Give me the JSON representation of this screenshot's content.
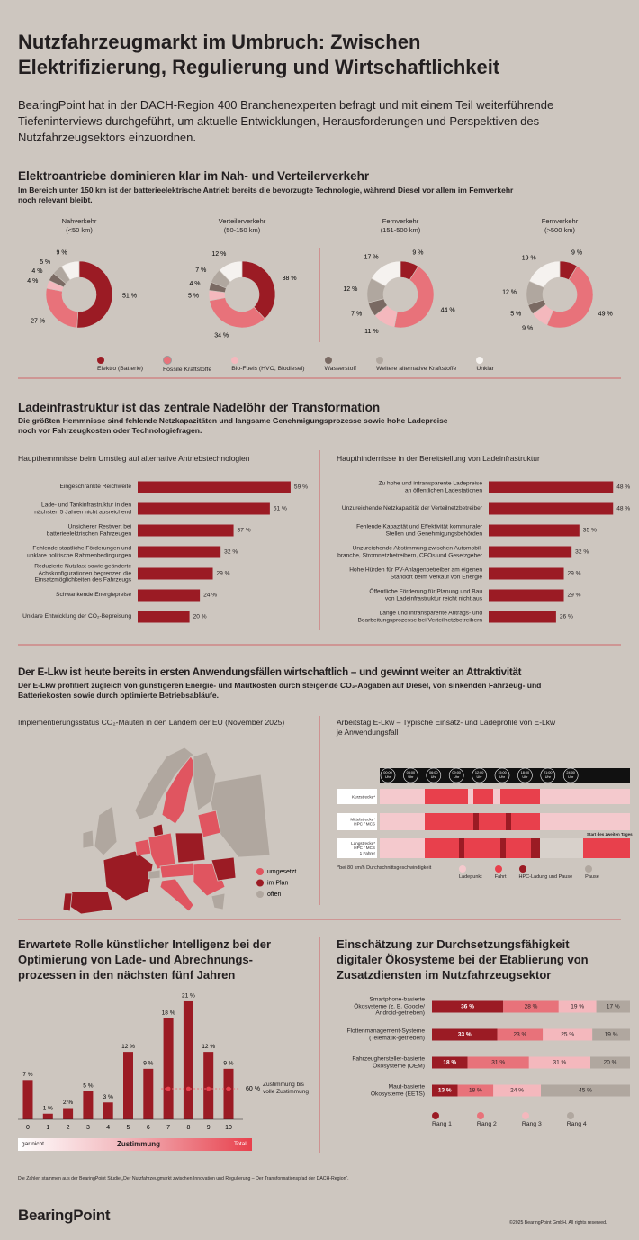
{
  "header": {
    "title": "Nutzfahrzeugmarkt im Umbruch: Zwischen\nElektrifizierung, Regulierung und Wirtschaftlichkeit",
    "intro": "BearingPoint hat in der DACH-Region 400 Branchenexperten befragt und mit einem Teil weiterführende\nTiefeninterviews durchgeführt, um aktuelle Entwicklungen, Herausforderungen und Perspektiven des\nNutzfahrzeugsektors einzuordnen."
  },
  "section1": {
    "title": "Elektroantriebe dominieren klar im Nah- und Verteilerverkehr",
    "subtitle": "Im Bereich unter 150 km ist der batterieelektrische Antrieb bereits die bevorzugte Technologie, während Diesel vor allem im Fernverkehr\nnoch relevant bleibt.",
    "legend": {
      "categories": [
        "Elektro (Batterie)",
        "Fossile Kraftstoffe",
        "Bio-Fuels (HVO, Biodiesel)",
        "Wasserstoff",
        "Weitere alternative Kraftstoffe",
        "Unklar"
      ],
      "colors": [
        "#9b1b24",
        "#e8727a",
        "#f4b8bd",
        "#7a6a63",
        "#b0a79f",
        "#f5f2ef"
      ]
    }
  },
  "section2": {
    "title": "Ladeinfrastruktur ist das zentrale Nadelöhr der Transformation",
    "subtitle": "Die größten Hemmnisse sind fehlende Netzkapazitäten und langsame Genehmigungsprozesse sowie hohe Ladepreise –\nnoch vor Fahrzeugkosten oder Technologiefragen."
  },
  "section3": {
    "title": "Der E-Lkw ist heute bereits in ersten Anwendungsfällen wirtschaftlich – und gewinnt weiter an Attraktivität",
    "subtitle": "Der E-Lkw profitiert zugleich von günstigeren Energie- und Mautkosten durch steigende CO₂-Abgaben auf Diesel, von sinkenden Fahrzeug- und\nBatteriekosten sowie durch optimierte Betriebsabläufe."
  },
  "map": {
    "title": "Implementierungsstatus CO₂-Mauten in den Ländern der EU (November 2025)",
    "legend": [
      {
        "label": "umgesetzt",
        "color": "#e05560"
      },
      {
        "label": "im Plan",
        "color": "#9b1b24"
      },
      {
        "label": "offen",
        "color": "#b0a79f"
      }
    ]
  },
  "schedule": {
    "title": "Arbeitstag E-Lkw – Typische Einsatz- und Ladeprofile von E-Lkw\nje Anwendungsfall",
    "times": [
      "00:00\nUhr",
      "03:00\nUhr",
      "06:00\nUhr",
      "09:00\nUhr",
      "12:00\nUhr",
      "15:00\nUhr",
      "18:00\nUhr",
      "21:00\nUhr",
      "24:00\nUhr"
    ],
    "rows": [
      "Kurzstrecke*",
      "Mittelstrecke*\nHPC / MCS",
      "Langstrecke*\nHPC / MCS\n1 Fahrer"
    ],
    "annotation": "Start des zweiten Tages",
    "note": "*bei 80 km/h Durchschnittsgeschwindigkeit",
    "legend": [
      {
        "label": "Ladepunkt",
        "color": "#f4c9cd"
      },
      {
        "label": "Fahrt",
        "color": "#e8404c"
      },
      {
        "label": "HPC-Ladung und Pause",
        "color": "#9b1b24"
      },
      {
        "label": "Pause",
        "color": "#b0a79f"
      }
    ]
  },
  "chart_data": [
    {
      "type": "pie",
      "title": "Nahverkehr\n(<50 km)",
      "values": [
        51,
        27,
        4,
        4,
        5,
        9
      ],
      "value_labels": [
        "51 %",
        "27 %",
        "4 %",
        "4 %",
        "5 %",
        "9 %"
      ]
    },
    {
      "type": "pie",
      "title": "Verteilerverkehr\n(50-150 km)",
      "values": [
        38,
        34,
        5,
        4,
        7,
        12
      ],
      "value_labels": [
        "38 %",
        "34 %",
        "5 %",
        "4 %",
        "7 %",
        "12 %"
      ]
    },
    {
      "type": "pie",
      "title": "Fernverkehr\n(151-500 km)",
      "values": [
        9,
        44,
        11,
        7,
        12,
        17
      ],
      "value_labels": [
        "9 %",
        "44 %",
        "11 %",
        "7 %",
        "12 %",
        "17 %"
      ]
    },
    {
      "type": "pie",
      "title": "Fernverkehr\n(>500 km)",
      "values": [
        9,
        49,
        9,
        5,
        12,
        19
      ],
      "value_labels": [
        "9 %",
        "49 %",
        "9 %",
        "5 %",
        "12 %",
        "19 %"
      ]
    },
    {
      "type": "hbar",
      "title": "Haupthemmnisse beim Umstieg auf alternative Antriebstechnologien",
      "color": "#9b1b24",
      "categories": [
        "Eingeschränkte Reichweite",
        "Lade- und Tankinfrastruktur in den\nnächsten 5 Jahren nicht ausreichend",
        "Unsicherer Restwert bei\nbatterieelektrischen Fahrzeugen",
        "Fehlende staatliche Förderungen und\nunklare politische Rahmenbedingungen",
        "Reduzierte Nutzlast sowie geänderte\nAchskonfigurationen begrenzen die\nEinsatzmöglichkeiten des Fahrzeugs",
        "Schwankende Energiepreise",
        "Unklare Entwicklung der CO₂-Bepreisung"
      ],
      "values": [
        59,
        51,
        37,
        32,
        29,
        24,
        20
      ],
      "value_labels": [
        "59 %",
        "51 %",
        "37 %",
        "32 %",
        "29 %",
        "24 %",
        "20 %"
      ]
    },
    {
      "type": "hbar",
      "title": "Haupthindernisse in der Bereitstellung von Ladeinfrastruktur",
      "color": "#9b1b24",
      "categories": [
        "Zu hohe und intransparente Ladepreise\nan öffentlichen Ladestationen",
        "Unzureichende Netzkapazität der Verteilnetzbetreiber",
        "Fehlende Kapazität und Effektivität kommunaler\nStellen und Genehmigungsbehörden",
        "Unzureichende Abstimmung zwischen Automobil-\nbranche, Stromnetzbetreibern, CPOs und Gesetzgeber",
        "Hohe Hürden für PV-Anlagenbetreiber am eigenen\nStandort beim Verkauf von Energie",
        "Öffentliche Förderung für Planung und Bau\nvon Ladeinfrastruktur reicht nicht aus",
        "Lange und intransparente Antrags- und\nBearbeitungsprozesse bei Verteilnetzbetreibern"
      ],
      "values": [
        48,
        48,
        35,
        32,
        29,
        29,
        26
      ],
      "value_labels": [
        "48 %",
        "48 %",
        "35 %",
        "32 %",
        "29 %",
        "29 %",
        "26 %"
      ]
    },
    {
      "type": "bar",
      "title": "Erwartete Rolle künstlicher Intelligenz bei der\nOptimierung von Lade- und Abrechnungs-\nprozessen in den nächsten fünf Jahren",
      "color": "#9b1b24",
      "categories": [
        "0",
        "1",
        "2",
        "3",
        "4",
        "5",
        "6",
        "7",
        "8",
        "9",
        "10"
      ],
      "values": [
        7,
        1,
        2,
        5,
        3,
        12,
        9,
        18,
        21,
        12,
        9
      ],
      "value_labels": [
        "7 %",
        "1 %",
        "2 %",
        "5 %",
        "3 %",
        "12 %",
        "9 %",
        "18 %",
        "21 %",
        "12 %",
        "9 %"
      ],
      "annotation": {
        "value": 60,
        "label": "60 %",
        "text": "Zustimmung bis\nvolle Zustimmung"
      },
      "scale_labels": [
        "gar nicht",
        "Zustimmung",
        "Total"
      ]
    },
    {
      "type": "stacked_hbar",
      "title": "Einschätzung zur Durchsetzungsfähigkeit\ndigitaler Ökosysteme bei der Etablierung von\nZusatzdiensten im Nutzfahrzeugsektor",
      "categories": [
        "Smartphone-basierte\nÖkosysteme (z. B. Google/\nAndroid-getrieben)",
        "Flottenmanagement-Systeme\n(Telematik-getrieben)",
        "Fahrzeughersteller-basierte\nÖkosysteme (OEM)",
        "Maut-basierte\nÖkosysteme (EETS)"
      ],
      "series": [
        {
          "name": "Rang 1",
          "color": "#9b1b24",
          "values": [
            36,
            33,
            18,
            13
          ],
          "value_labels": [
            "36 %",
            "33 %",
            "18 %",
            "13 %"
          ]
        },
        {
          "name": "Rang 2",
          "color": "#e8727a",
          "values": [
            28,
            23,
            31,
            18
          ],
          "value_labels": [
            "28 %",
            "23 %",
            "31 %",
            "18 %"
          ]
        },
        {
          "name": "Rang 3",
          "color": "#f4b8bd",
          "values": [
            19,
            25,
            31,
            24
          ],
          "value_labels": [
            "19 %",
            "25 %",
            "31 %",
            "24 %"
          ]
        },
        {
          "name": "Rang 4",
          "color": "#b0a79f",
          "values": [
            17,
            19,
            20,
            45
          ],
          "value_labels": [
            "17 %",
            "19 %",
            "20 %",
            "45 %"
          ]
        }
      ]
    }
  ],
  "footer": {
    "source": "Die Zahlen stammen aus der BearingPoint Studie „Der Nutzfahrzeugmarkt zwischen Innovation und Regulierung – Der Transformationspfad der DACH-Region“.",
    "logo": "BearingPoint",
    "copyright": "©2025 BearingPoint GmbH. All rights reserved."
  }
}
